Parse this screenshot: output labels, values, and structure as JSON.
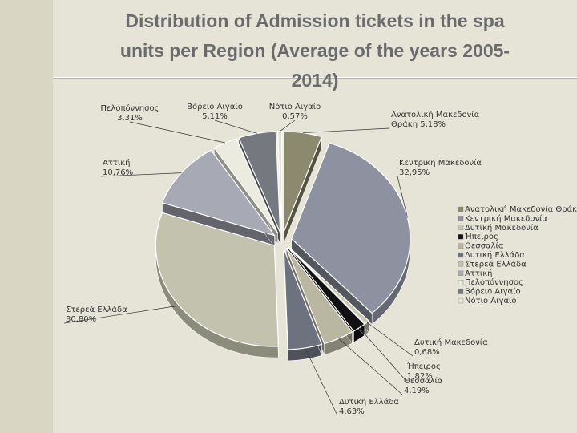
{
  "slide": {
    "title_lines": [
      "Distribution of Admission tickets in the spa",
      "units per Region (Average of the years 2005-",
      "2014)"
    ]
  },
  "chart_data": {
    "type": "pie",
    "title": "Distribution of Admission tickets in the spa units per Region (Average of the years 2005-2014)",
    "legend_position": "right",
    "slices": [
      {
        "name": "Ανατολική Μακεδονία Θράκη",
        "label": "Ανατολική Μακεδονία\nΘράκη 5,18%",
        "value": 5.18,
        "color": "#8c8a6e"
      },
      {
        "name": "Κεντρική Μακεδονία",
        "label": "Κεντρική Μακεδονία\n32,95%",
        "value": 32.95,
        "color": "#8e919f"
      },
      {
        "name": "Δυτική Μακεδονία",
        "label": "Δυτική Μακεδονία\n0,68%",
        "value": 0.68,
        "color": "#c9c7b3"
      },
      {
        "name": "Ήπειρος",
        "label": "Ήπειρος\n1,82%",
        "value": 1.82,
        "color": "#111111"
      },
      {
        "name": "Θεσσαλία",
        "label": "Θεσσαλία\n4,19%",
        "value": 4.19,
        "color": "#b9b7a1"
      },
      {
        "name": "Δυτική Ελλάδα",
        "label": "Δυτική Ελλάδα\n4,63%",
        "value": 4.63,
        "color": "#6e717e"
      },
      {
        "name": "Στερεά Ελλάδα",
        "label": "Στερεά Ελλάδα\n30,80%",
        "value": 30.8,
        "color": "#c3c2ae"
      },
      {
        "name": "Αττική",
        "label": "Αττική\n10,76%",
        "value": 10.76,
        "color": "#a7a9b4"
      },
      {
        "name": "Πελοπόννησος",
        "label": "Πελοπόννησος\n3,31%",
        "value": 3.31,
        "color": "#ecebe0"
      },
      {
        "name": "Βόρειο Αιγαίο",
        "label": "Βόρειο Αιγαίο\n5,11%",
        "value": 5.11,
        "color": "#75787f"
      },
      {
        "name": "Νότιο Αιγαίο",
        "label": "Νότιο Αιγαίο\n0,57%",
        "value": 0.57,
        "color": "#e3e2d4"
      }
    ]
  }
}
